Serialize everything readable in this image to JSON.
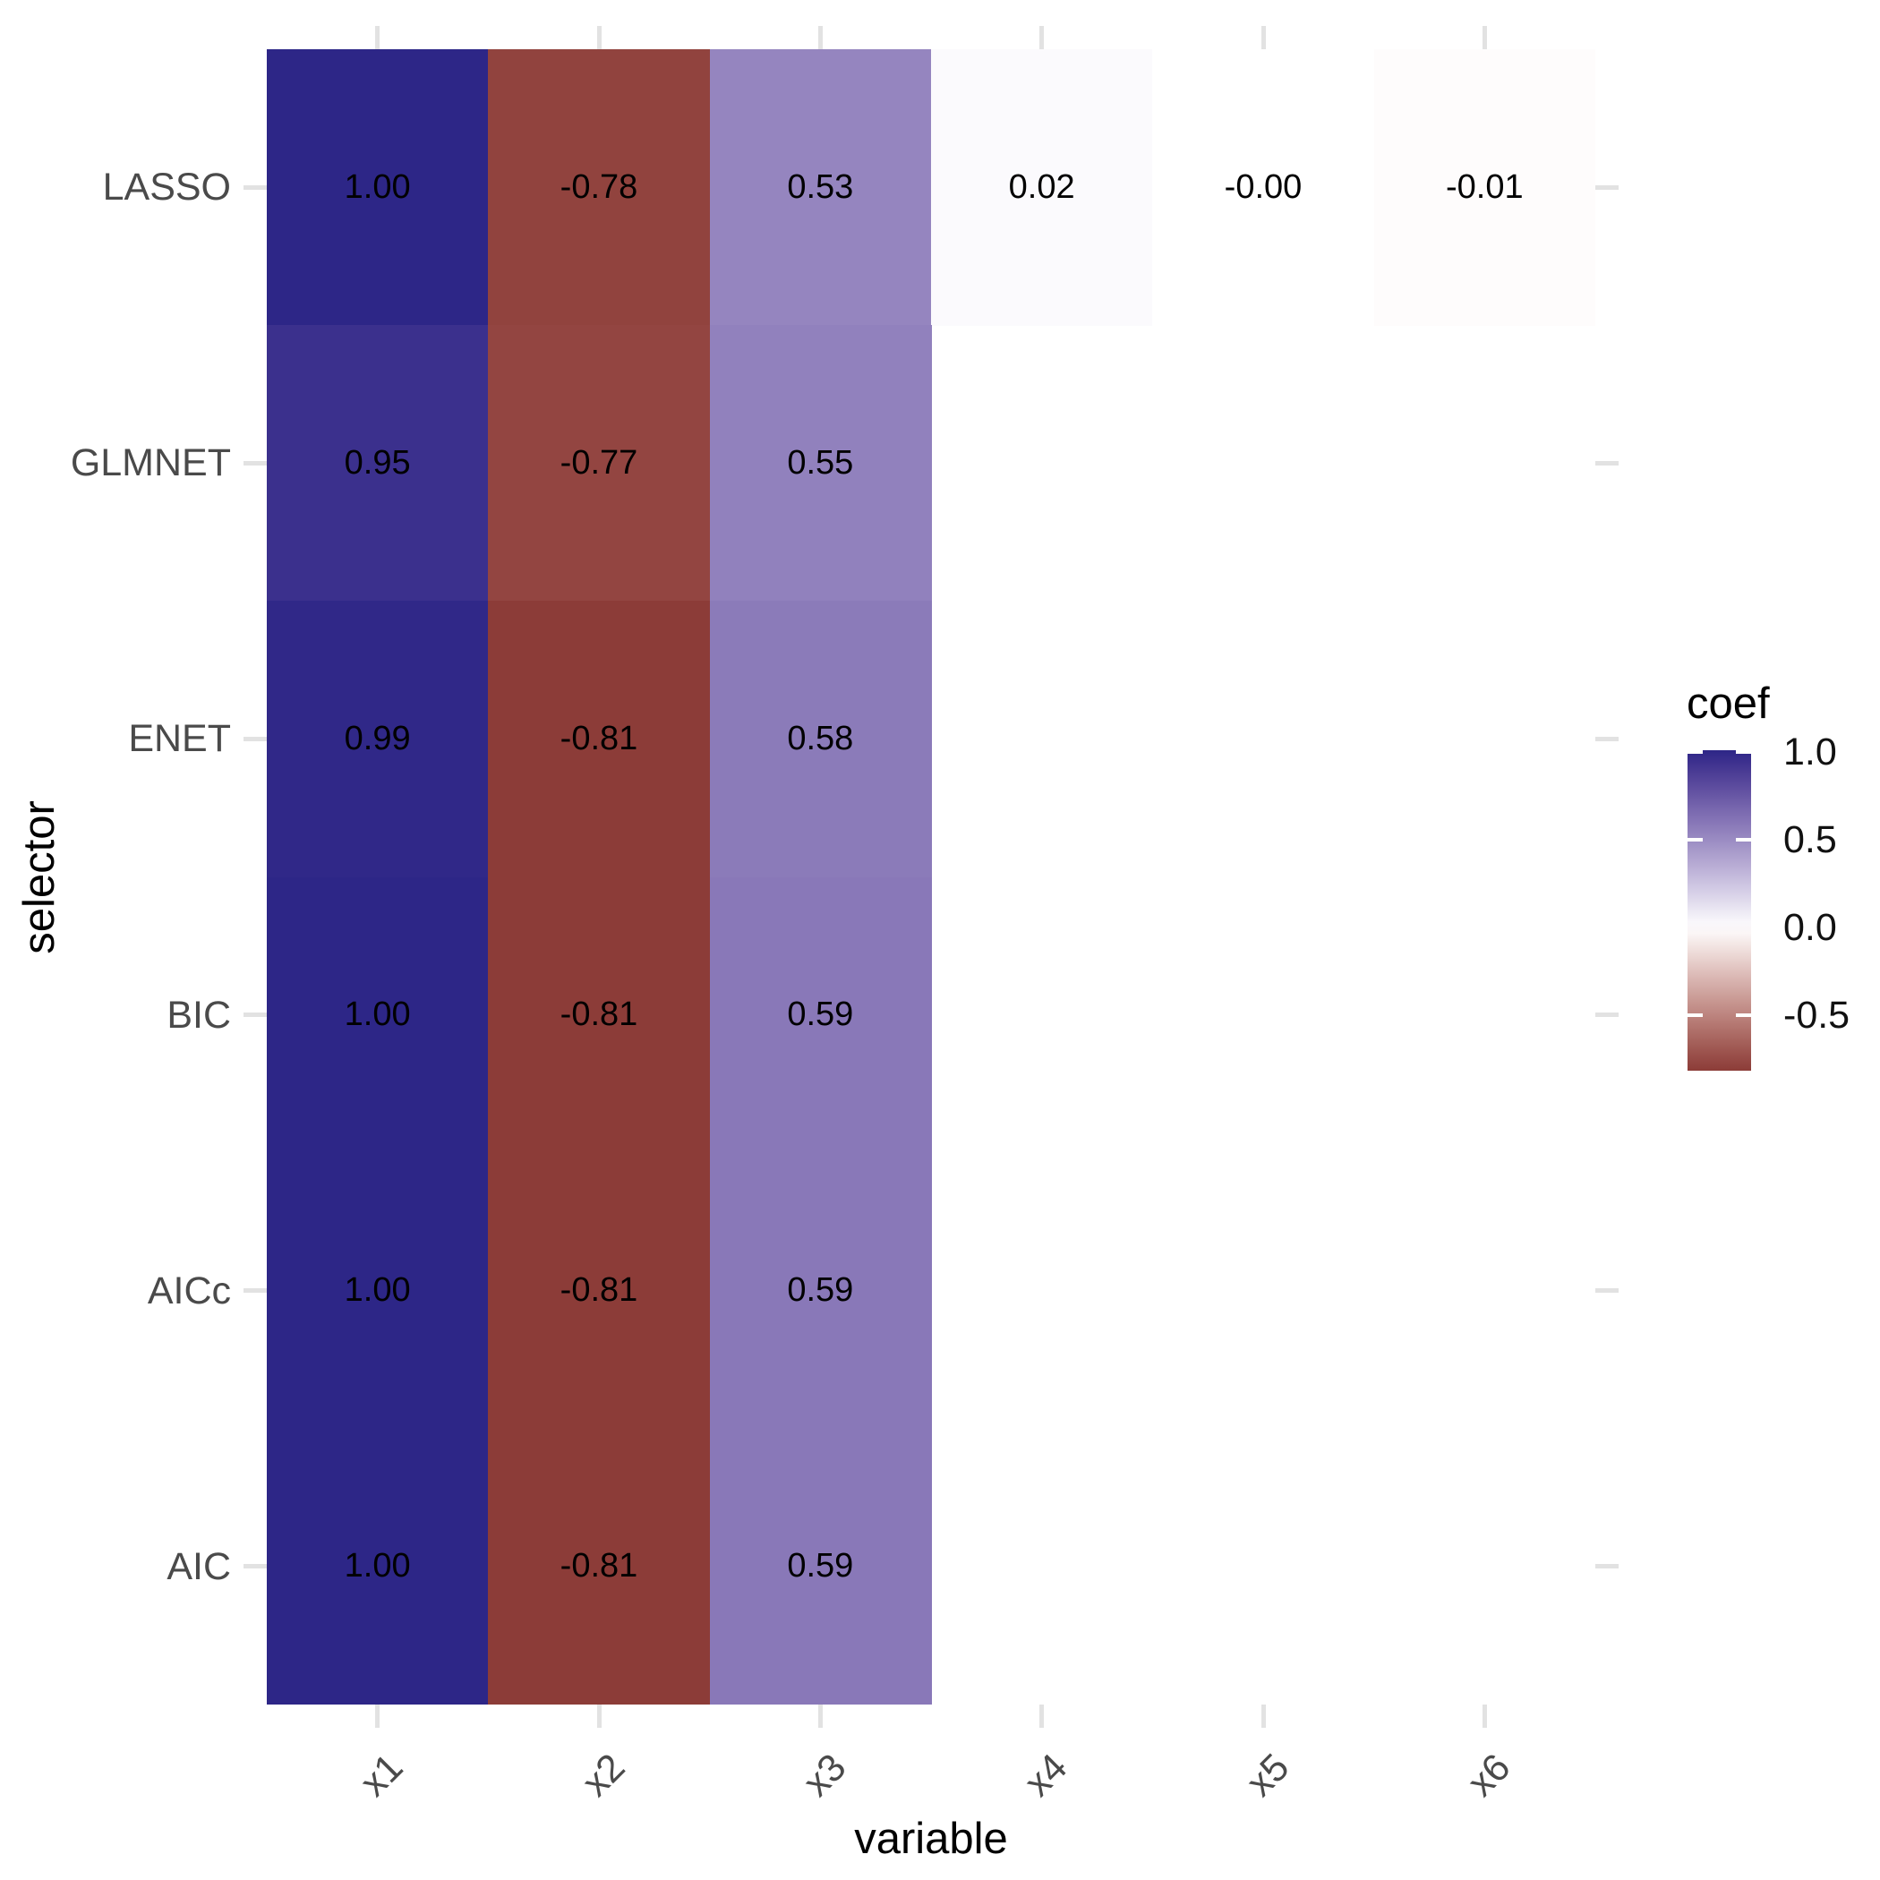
{
  "chart_data": {
    "type": "heatmap",
    "xlabel": "variable",
    "ylabel": "selector",
    "x_categories": [
      "x1",
      "x2",
      "x3",
      "x4",
      "x5",
      "x6"
    ],
    "y_categories": [
      "LASSO",
      "GLMNET",
      "ENET",
      "BIC",
      "AICc",
      "AIC"
    ],
    "values": [
      [
        1.0,
        -0.78,
        0.53,
        0.02,
        -0.0,
        -0.01
      ],
      [
        0.95,
        -0.77,
        0.55,
        null,
        null,
        null
      ],
      [
        0.99,
        -0.81,
        0.58,
        null,
        null,
        null
      ],
      [
        1.0,
        -0.81,
        0.59,
        null,
        null,
        null
      ],
      [
        1.0,
        -0.81,
        0.59,
        null,
        null,
        null
      ],
      [
        1.0,
        -0.81,
        0.59,
        null,
        null,
        null
      ]
    ],
    "cell_labels": [
      [
        "1.00",
        "-0.78",
        "0.53",
        "0.02",
        "-0.00",
        "-0.01"
      ],
      [
        "0.95",
        "-0.77",
        "0.55",
        null,
        null,
        null
      ],
      [
        "0.99",
        "-0.81",
        "0.58",
        null,
        null,
        null
      ],
      [
        "1.00",
        "-0.81",
        "0.59",
        null,
        null,
        null
      ],
      [
        "1.00",
        "-0.81",
        "0.59",
        null,
        null,
        null
      ],
      [
        "1.00",
        "-0.81",
        "0.59",
        null,
        null,
        null
      ]
    ],
    "legend": {
      "title": "coef",
      "breaks": [
        1.0,
        0.5,
        0.0,
        -0.5
      ],
      "break_labels": [
        "1.0",
        "0.5",
        "0.0",
        "-0.5"
      ],
      "limits": [
        -0.81,
        1.0
      ],
      "position": "right"
    },
    "colors": {
      "high": "#2D2687",
      "mid": "#FFFFFF",
      "low": "#8C3C38",
      "axis_tick": "#E2E2E2",
      "axis_text": "#4A4A4A",
      "cell_text": "#000000"
    },
    "grid": false,
    "title": ""
  }
}
